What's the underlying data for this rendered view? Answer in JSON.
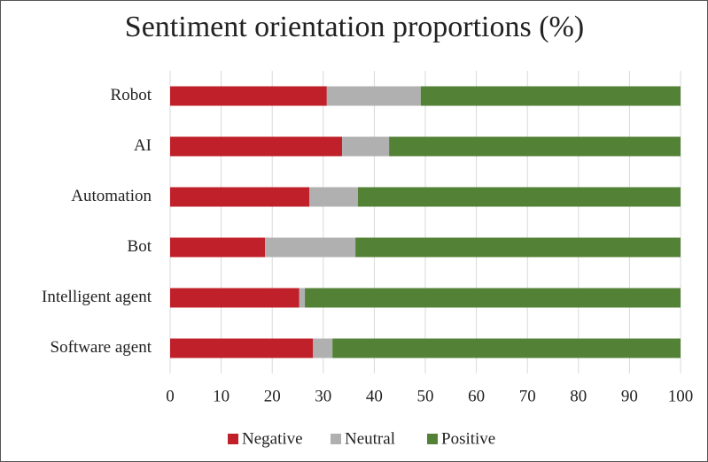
{
  "chart_data": {
    "type": "bar",
    "orientation": "horizontal",
    "stacked": true,
    "title": "Sentiment orientation proportions (%)",
    "categories": [
      "Robot",
      "AI",
      "Automation",
      "Bot",
      "Intelligent agent",
      "Software agent"
    ],
    "series": [
      {
        "name": "Negative",
        "color": "#c0202a",
        "values": [
          30.7,
          33.7,
          27.3,
          18.6,
          25.3,
          28.0
        ]
      },
      {
        "name": "Neutral",
        "color": "#b0b0b0",
        "values": [
          18.4,
          9.2,
          9.5,
          17.7,
          1.1,
          3.8
        ]
      },
      {
        "name": "Positive",
        "color": "#538135",
        "values": [
          50.9,
          57.1,
          63.2,
          63.7,
          73.6,
          68.2
        ]
      }
    ],
    "xlim": [
      0,
      100
    ],
    "xticks": [
      0,
      10,
      20,
      30,
      40,
      50,
      60,
      70,
      80,
      90,
      100
    ],
    "grid": true,
    "legend": "bottom"
  }
}
